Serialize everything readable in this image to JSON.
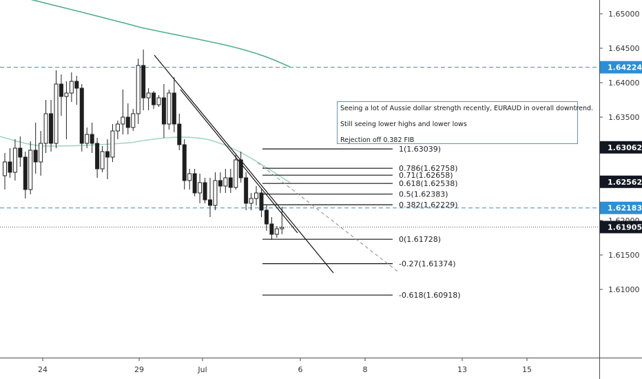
{
  "chart_data": {
    "type": "candlestick",
    "x_ticks": [
      "24",
      "29",
      "Jul",
      "6",
      "8",
      "13",
      "15"
    ],
    "y_ticks": [
      "1.65000",
      "1.64500",
      "1.64000",
      "1.63500",
      "1.62000",
      "1.61500",
      "1.61000"
    ],
    "price_tags": [
      {
        "label": "1.64224",
        "value": 1.64224,
        "style": "blue"
      },
      {
        "label": "1.63062",
        "value": 1.63062,
        "style": "dark"
      },
      {
        "label": "1.62562",
        "value": 1.62562,
        "style": "dark"
      },
      {
        "label": "1.62183",
        "value": 1.62183,
        "style": "blue"
      },
      {
        "label": "1.61905",
        "value": 1.61905,
        "style": "dark"
      }
    ],
    "horizontal_levels": [
      {
        "value": 1.64224,
        "style": "dashed-blue"
      },
      {
        "value": 1.62183,
        "style": "dashed-blue"
      },
      {
        "value": 1.61905,
        "style": "dotted-dark"
      }
    ],
    "fibonacci": [
      {
        "label": "1(1.63039)",
        "value": 1.63039
      },
      {
        "label": "0.786(1.62758)",
        "value": 1.62758
      },
      {
        "label": "0.71(1.62658)",
        "value": 1.62658
      },
      {
        "label": "0.618(1.62538)",
        "value": 1.62538
      },
      {
        "label": "0.5(1.62383)",
        "value": 1.62383
      },
      {
        "label": "0.382(1.62229)",
        "value": 1.62229
      },
      {
        "label": "0(1.61728)",
        "value": 1.61728
      },
      {
        "label": "-0.27(1.61374)",
        "value": 1.61374
      },
      {
        "label": "-0.618(1.60918)",
        "value": 1.60918
      }
    ],
    "candles": [
      {
        "o": 1.6265,
        "h": 1.6298,
        "l": 1.6245,
        "c": 1.6285
      },
      {
        "o": 1.6285,
        "h": 1.6305,
        "l": 1.6262,
        "c": 1.627
      },
      {
        "o": 1.627,
        "h": 1.6318,
        "l": 1.6258,
        "c": 1.6305
      },
      {
        "o": 1.6305,
        "h": 1.6322,
        "l": 1.6278,
        "c": 1.6292
      },
      {
        "o": 1.6292,
        "h": 1.63,
        "l": 1.6232,
        "c": 1.6245
      },
      {
        "o": 1.6245,
        "h": 1.6315,
        "l": 1.6238,
        "c": 1.6302
      },
      {
        "o": 1.6302,
        "h": 1.6342,
        "l": 1.6268,
        "c": 1.6285
      },
      {
        "o": 1.6285,
        "h": 1.633,
        "l": 1.6265,
        "c": 1.6312
      },
      {
        "o": 1.6312,
        "h": 1.6375,
        "l": 1.6298,
        "c": 1.6355
      },
      {
        "o": 1.6355,
        "h": 1.6375,
        "l": 1.63,
        "c": 1.6312
      },
      {
        "o": 1.6312,
        "h": 1.6418,
        "l": 1.6305,
        "c": 1.6398
      },
      {
        "o": 1.6398,
        "h": 1.6412,
        "l": 1.6352,
        "c": 1.638
      },
      {
        "o": 1.638,
        "h": 1.6402,
        "l": 1.6318,
        "c": 1.6385
      },
      {
        "o": 1.6385,
        "h": 1.6415,
        "l": 1.6372,
        "c": 1.6402
      },
      {
        "o": 1.6402,
        "h": 1.641,
        "l": 1.6368,
        "c": 1.6392
      },
      {
        "o": 1.6392,
        "h": 1.6398,
        "l": 1.63,
        "c": 1.6312
      },
      {
        "o": 1.6312,
        "h": 1.6335,
        "l": 1.6305,
        "c": 1.6325
      },
      {
        "o": 1.6325,
        "h": 1.6342,
        "l": 1.6298,
        "c": 1.6312
      },
      {
        "o": 1.6312,
        "h": 1.632,
        "l": 1.6262,
        "c": 1.6275
      },
      {
        "o": 1.6275,
        "h": 1.6308,
        "l": 1.627,
        "c": 1.63
      },
      {
        "o": 1.63,
        "h": 1.6318,
        "l": 1.626,
        "c": 1.6292
      },
      {
        "o": 1.6292,
        "h": 1.634,
        "l": 1.6285,
        "c": 1.633
      },
      {
        "o": 1.633,
        "h": 1.6345,
        "l": 1.6318,
        "c": 1.634
      },
      {
        "o": 1.634,
        "h": 1.639,
        "l": 1.6325,
        "c": 1.635
      },
      {
        "o": 1.635,
        "h": 1.637,
        "l": 1.6325,
        "c": 1.6335
      },
      {
        "o": 1.6335,
        "h": 1.6362,
        "l": 1.633,
        "c": 1.6355
      },
      {
        "o": 1.6355,
        "h": 1.6435,
        "l": 1.634,
        "c": 1.6425
      },
      {
        "o": 1.6425,
        "h": 1.6448,
        "l": 1.636,
        "c": 1.6378
      },
      {
        "o": 1.6378,
        "h": 1.6392,
        "l": 1.636,
        "c": 1.6385
      },
      {
        "o": 1.6385,
        "h": 1.6388,
        "l": 1.6362,
        "c": 1.6368
      },
      {
        "o": 1.6368,
        "h": 1.6382,
        "l": 1.6365,
        "c": 1.6378
      },
      {
        "o": 1.6378,
        "h": 1.6398,
        "l": 1.632,
        "c": 1.634
      },
      {
        "o": 1.634,
        "h": 1.639,
        "l": 1.6332,
        "c": 1.6385
      },
      {
        "o": 1.6385,
        "h": 1.6408,
        "l": 1.6328,
        "c": 1.634
      },
      {
        "o": 1.634,
        "h": 1.6355,
        "l": 1.6302,
        "c": 1.631
      },
      {
        "o": 1.631,
        "h": 1.6318,
        "l": 1.6245,
        "c": 1.6258
      },
      {
        "o": 1.6258,
        "h": 1.6275,
        "l": 1.6245,
        "c": 1.6268
      },
      {
        "o": 1.6268,
        "h": 1.6275,
        "l": 1.6235,
        "c": 1.624
      },
      {
        "o": 1.624,
        "h": 1.6268,
        "l": 1.6225,
        "c": 1.6255
      },
      {
        "o": 1.6255,
        "h": 1.6262,
        "l": 1.6225,
        "c": 1.623
      },
      {
        "o": 1.623,
        "h": 1.6262,
        "l": 1.6205,
        "c": 1.6222
      },
      {
        "o": 1.6222,
        "h": 1.627,
        "l": 1.6215,
        "c": 1.6258
      },
      {
        "o": 1.6258,
        "h": 1.627,
        "l": 1.624,
        "c": 1.625
      },
      {
        "o": 1.625,
        "h": 1.6275,
        "l": 1.624,
        "c": 1.6262
      },
      {
        "o": 1.6262,
        "h": 1.6275,
        "l": 1.624,
        "c": 1.6248
      },
      {
        "o": 1.6248,
        "h": 1.6295,
        "l": 1.6245,
        "c": 1.6288
      },
      {
        "o": 1.6288,
        "h": 1.63,
        "l": 1.6255,
        "c": 1.6262
      },
      {
        "o": 1.6262,
        "h": 1.627,
        "l": 1.6215,
        "c": 1.6225
      },
      {
        "o": 1.6225,
        "h": 1.624,
        "l": 1.6215,
        "c": 1.6232
      },
      {
        "o": 1.6232,
        "h": 1.625,
        "l": 1.6222,
        "c": 1.624
      },
      {
        "o": 1.624,
        "h": 1.6245,
        "l": 1.6205,
        "c": 1.6215
      },
      {
        "o": 1.6215,
        "h": 1.6222,
        "l": 1.6185,
        "c": 1.6195
      },
      {
        "o": 1.6195,
        "h": 1.6205,
        "l": 1.6172,
        "c": 1.618
      },
      {
        "o": 1.618,
        "h": 1.6192,
        "l": 1.6175,
        "c": 1.6188
      },
      {
        "o": 1.6188,
        "h": 1.622,
        "l": 1.618,
        "c": 1.619
      }
    ],
    "annotation": [
      "Seeing a lot of Aussie dollar strength recently, EURAUD in overall downtrend.",
      "Still seeing lower highs and lower lows",
      "Rejection off 0.382 FIB"
    ],
    "colors": {
      "candle": "#1f1f1f",
      "ma_long": "#4caf8a",
      "ma_short": "#9fd6c6",
      "level_blue": "#2a8fd6",
      "tag_dark": "#131722",
      "tag_blue": "#2a8fd6"
    },
    "grid": false
  }
}
